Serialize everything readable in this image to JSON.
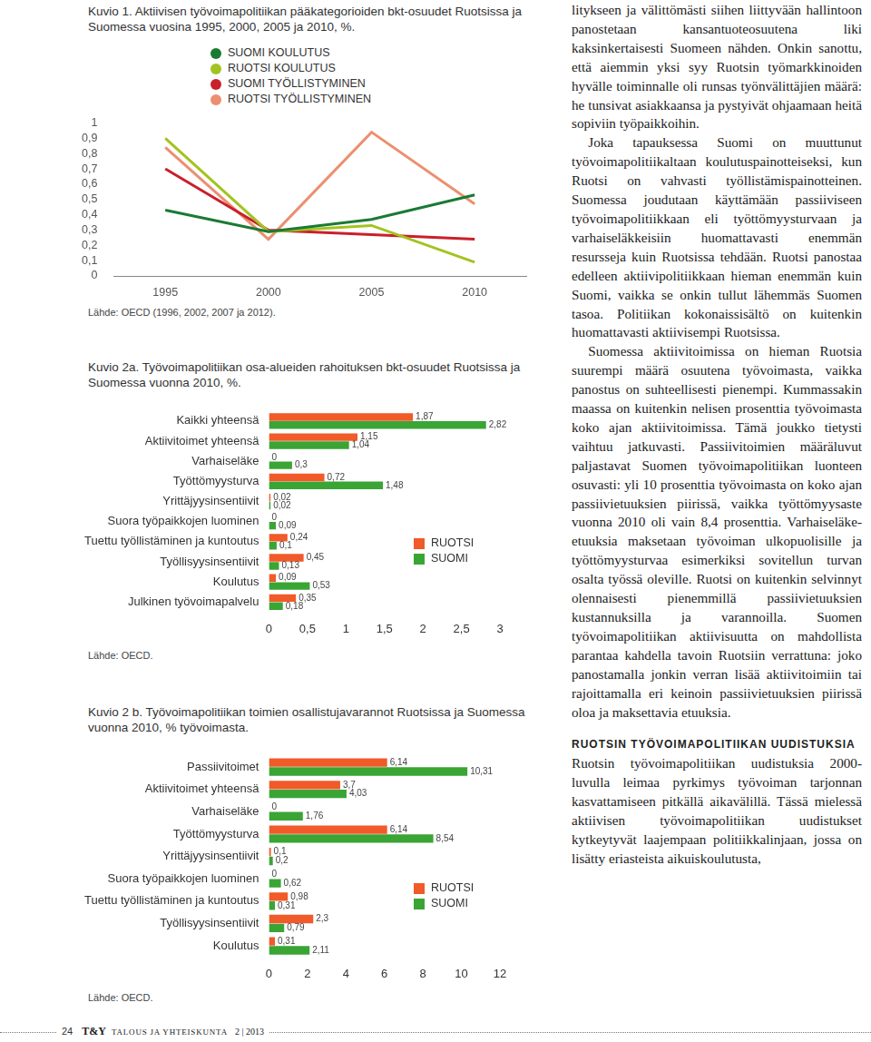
{
  "chart_data": [
    {
      "type": "line",
      "title": "Kuvio 1. Aktiivisen työvoimapolitiikan pääkategorioiden bkt-osuudet Ruotsissa ja Suomessa vuosina 1995, 2000, 2005 ja 2010, %.",
      "source": "Lähde: OECD (1996, 2002, 2007 ja 2012).",
      "categories": [
        "1995",
        "2000",
        "2005",
        "2010"
      ],
      "series": [
        {
          "name": "SUOMI KOULUTUS",
          "color": "#1a7a34",
          "values": [
            0.43,
            0.29,
            0.37,
            0.53
          ]
        },
        {
          "name": "RUOTSI KOULUTUS",
          "color": "#a3c320",
          "values": [
            0.9,
            0.29,
            0.33,
            0.09
          ]
        },
        {
          "name": "SUOMI TYÖLLISTYMINEN",
          "color": "#c9202b",
          "values": [
            0.7,
            0.3,
            0.27,
            0.24
          ]
        },
        {
          "name": "RUOTSI TYÖLLISTYMINEN",
          "color": "#ec8f6f",
          "values": [
            0.84,
            0.24,
            0.94,
            0.47
          ]
        }
      ],
      "ylim": [
        0,
        1
      ],
      "yticks": [
        0,
        {
          "value": 0.1,
          "label": "0,1"
        },
        {
          "value": 0.2,
          "label": "0,2"
        },
        {
          "value": 0.3,
          "label": "0,3"
        },
        {
          "value": 0.4,
          "label": "0,4"
        },
        {
          "value": 0.5,
          "label": "0,5"
        },
        {
          "value": 0.6,
          "label": "0,6"
        },
        {
          "value": 0.7,
          "label": "0,7"
        },
        {
          "value": 0.8,
          "label": "0,8"
        },
        {
          "value": 0.9,
          "label": "0,9"
        },
        1
      ],
      "grid": false,
      "legend": "top"
    },
    {
      "type": "bar",
      "orientation": "horizontal",
      "title": "Kuvio 2a. Työvoimapolitiikan osa-alueiden rahoituksen bkt-osuudet Ruotsissa ja Suomessa vuonna 2010, %.",
      "source": "Lähde: OECD.",
      "categories": [
        "Kaikki yhteensä",
        "Aktiivitoimet yhteensä",
        "Varhaiseläke",
        "Työttömyysturva",
        "Yrittäjyysinsentiivit",
        "Suora työpaikkojen luominen",
        "Tuettu työllistäminen ja kuntoutus",
        "Työllisyysinsentiivit",
        "Koulutus",
        "Julkinen työvoimapalvelu"
      ],
      "series": [
        {
          "name": "RUOTSI",
          "color": "#f15a29",
          "values": [
            1.87,
            1.15,
            0,
            0.72,
            0.02,
            0,
            0.24,
            0.45,
            0.09,
            0.35
          ],
          "value_labels": [
            "1,87",
            "1,15",
            "0",
            "0,72",
            "0,02",
            "0",
            "0,24",
            "0,45",
            "0,09",
            "0,35"
          ]
        },
        {
          "name": "SUOMI",
          "color": "#3aa535",
          "values": [
            2.82,
            1.04,
            0.3,
            1.48,
            0.02,
            0.09,
            0.1,
            0.13,
            0.53,
            0.18
          ],
          "value_labels": [
            "2,82",
            "1,04",
            "0,3",
            "1,48",
            "0,02",
            "0,09",
            "0,1",
            "0,13",
            "0,53",
            "0,18"
          ]
        }
      ],
      "xlim": [
        0,
        3
      ],
      "xticks": [
        0,
        {
          "value": 0.5,
          "label": "0,5"
        },
        1,
        {
          "value": 1.5,
          "label": "1,5"
        },
        2,
        {
          "value": 2.5,
          "label": "2,5"
        },
        3
      ],
      "grid": false,
      "legend": "right",
      "data_labels": true
    },
    {
      "type": "bar",
      "orientation": "horizontal",
      "title": "Kuvio 2 b. Työvoimapolitiikan toimien osallistujavarannot Ruotsissa ja Suomessa vuonna 2010, % työvoimasta.",
      "source": "Lähde: OECD.",
      "categories": [
        "Passiivitoimet",
        "Aktiivitoimet yhteensä",
        "Varhaiseläke",
        "Työttömyysturva",
        "Yrittäjyysinsentiivit",
        "Suora työpaikkojen luominen",
        "Tuettu työllistäminen ja kuntoutus",
        "Työllisyysinsentiivit",
        "Koulutus"
      ],
      "series": [
        {
          "name": "RUOTSI",
          "color": "#f15a29",
          "values": [
            6.14,
            3.7,
            0,
            6.14,
            0.1,
            0,
            0.98,
            2.3,
            0.31
          ],
          "value_labels": [
            "6,14",
            "3,7",
            "0",
            "6,14",
            "0,1",
            "0",
            "0,98",
            "2,3",
            "0,31"
          ]
        },
        {
          "name": "SUOMI",
          "color": "#3aa535",
          "values": [
            10.31,
            4.03,
            1.76,
            8.54,
            0.2,
            0.62,
            0.31,
            0.79,
            2.11
          ],
          "value_labels": [
            "10,31",
            "4,03",
            "1,76",
            "8,54",
            "0,2",
            "0,62",
            "0,31",
            "0,79",
            "2,11"
          ]
        }
      ],
      "xlim": [
        0,
        12
      ],
      "xticks": [
        0,
        2,
        4,
        6,
        8,
        10,
        12
      ],
      "grid": false,
      "legend": "right",
      "data_labels": true
    }
  ],
  "document": {
    "text_column": [
      {
        "p": "litykseen ja välittömästi siihen liittyvään hallintoon panostetaan kansantuoteosuutena liki kaksinkertaisesti Suomeen nähden. Onkin sanottu, että aiemmin yksi syy Ruotsin työmarkkinoiden hyvälle toiminnalle oli runsas työnvälittäjien määrä: he tunsivat asiakkaansa ja pystyivät ohjaamaan heitä sopiviin työpaikkoihin."
      },
      {
        "p": "Joka tapauksessa Suomi on muuttunut työvoimapolitiikaltaan koulutuspainotteiseksi, kun Ruotsi on vahvasti työllistämispainotteinen. Suomessa joudutaan käyttämään passiiviseen työvoimapolitiikkaan eli työttömyysturvaan ja varhaiseläkkeisiin huomattavasti enemmän resursseja kuin Ruotsissa tehdään. Ruotsi panostaa edelleen aktiivipolitiikkaan hieman enemmän kuin Suomi, vaikka se onkin tullut lähemmäs Suomen tasoa. Politiikan kokonaissisältö on kuitenkin huomattavasti aktiivisempi Ruotsissa."
      },
      {
        "p": "Suomessa aktiivitoimissa on hieman Ruotsia suurempi määrä osuutena työvoimasta, vaikka panostus on suhteellisesti pienempi. Kummassakin maassa on kuitenkin nelisen prosenttia työvoimasta koko ajan aktiivitoimissa. Tämä joukko tietysti vaihtuu jatkuvasti. Passiivitoimien määräluvut paljastavat Suomen työvoimapolitiikan luonteen osuvasti: yli 10 prosenttia työvoimasta on koko ajan passiivietuuksien piirissä, vaikka työttömyysaste vuonna 2010 oli vain 8,4 prosenttia. Varhaiseläke-etuuksia maksetaan työvoiman ulkopuolisille ja työttömyysturvaa esimerkiksi sovitellun turvan osalta työssä oleville. Ruotsi on kuitenkin selvinnyt olennaisesti pienemmillä passiivietuuksien kustannuksilla ja varannoilla. Suomen työvoimapolitiikan aktiivisuutta on mahdollista parantaa kahdella tavoin Ruotsiin verrattuna: joko panostamalla jonkin verran lisää aktiivitoimiin tai rajoittamalla eri keinoin passiivietuuksien piirissä oloa ja maksettavia etuuksia."
      },
      {
        "h": "RUOTSIN TYÖVOIMAPOLITIIKAN UUDISTUKSIA"
      },
      {
        "p": "Ruotsin työvoimapolitiikan uudistuksia 2000-luvulla leimaa pyrkimys työvoiman tarjonnan kasvattamiseen pitkällä aikavälillä. Tässä mielessä aktiivisen työvoimapolitiikan uudistukset kytkeytyvät laajempaan politiikkalinjaan, jossa on lisätty eriasteista aikuiskoulutusta,"
      }
    ],
    "footer": {
      "page": "24",
      "magazine": "T&Y",
      "name": "TALOUS JA YHTEISKUNTA",
      "issue": "2 | 2013"
    }
  }
}
